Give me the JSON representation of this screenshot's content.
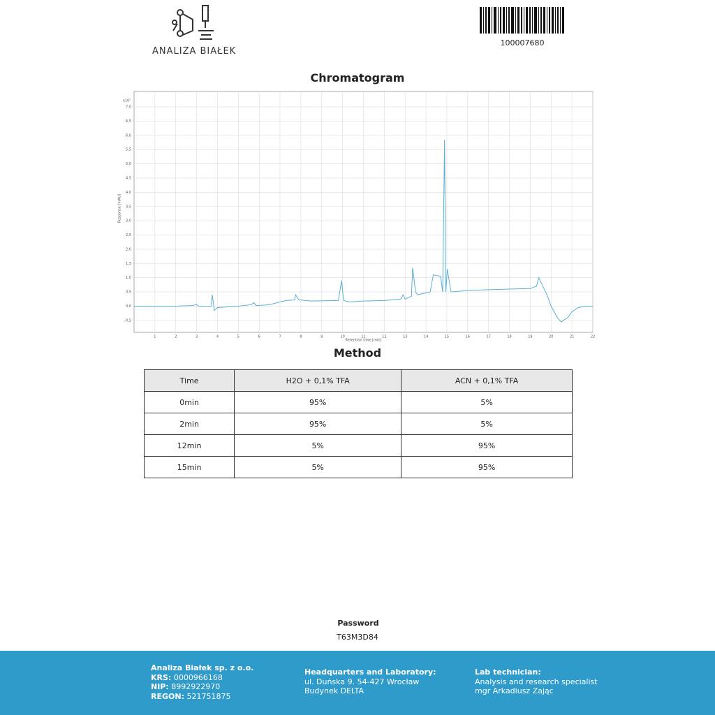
{
  "header": {
    "logo_text": "ANALIZA BIAŁEK",
    "barcode_number": "100007680"
  },
  "chart_data": {
    "type": "line",
    "title": "Chromatogram",
    "x_label": "Retention time [min]",
    "y_label": "Response [mAU]",
    "y_multiplier": "x10²",
    "x": [
      0,
      0.5,
      1,
      2,
      2.8,
      3,
      3.1,
      3.7,
      3.75,
      3.85,
      4,
      5,
      5.6,
      5.75,
      5.85,
      6.5,
      7,
      7.3,
      7.7,
      7.75,
      7.9,
      8.5,
      9.8,
      9.95,
      10.05,
      10.3,
      11,
      12,
      12.8,
      12.9,
      13,
      13.3,
      13.36,
      13.5,
      13.6,
      14.2,
      14.35,
      14.7,
      14.8,
      14.89,
      14.95,
      15.02,
      15.2,
      16,
      17,
      18,
      19,
      19.3,
      19.41,
      19.8,
      20,
      20.3,
      20.48,
      20.8,
      21,
      21.3,
      21.7,
      22
    ],
    "values": [
      0,
      0,
      -0.01,
      0,
      0.02,
      0.06,
      0,
      0,
      0.4,
      -0.15,
      -0.05,
      0,
      0.05,
      0.12,
      0.02,
      0.05,
      0.15,
      0.2,
      0.22,
      0.4,
      0.22,
      0.18,
      0.2,
      0.9,
      0.2,
      0.15,
      0.18,
      0.2,
      0.25,
      0.4,
      0.25,
      0.35,
      1.35,
      0.5,
      0.4,
      0.5,
      1.1,
      1.05,
      0.5,
      5.85,
      0.5,
      1.3,
      0.5,
      0.55,
      0.58,
      0.6,
      0.62,
      0.7,
      1.0,
      0.4,
      0,
      -0.4,
      -0.55,
      -0.4,
      -0.2,
      -0.05,
      0,
      0
    ],
    "color": "#5bb0d0",
    "xlim": [
      0,
      22
    ],
    "ylim": [
      -0.92,
      7.54
    ],
    "xticks": [
      1,
      2,
      3,
      4,
      5,
      6,
      7,
      8,
      9,
      10,
      11,
      12,
      13,
      14,
      15,
      16,
      17,
      18,
      19,
      20,
      21,
      22
    ],
    "yticks": [
      {
        "value": -0.5,
        "label": "-0,5"
      },
      {
        "value": 0,
        "label": "0,0"
      },
      {
        "value": 0.5,
        "label": "0,5"
      },
      {
        "value": 1,
        "label": "1,0"
      },
      {
        "value": 1.5,
        "label": "1,5"
      },
      {
        "value": 2,
        "label": "2,0"
      },
      {
        "value": 2.5,
        "label": "2,5"
      },
      {
        "value": 3,
        "label": "3,0"
      },
      {
        "value": 3.5,
        "label": "3,5"
      },
      {
        "value": 4,
        "label": "4,0"
      },
      {
        "value": 4.5,
        "label": "4,5"
      },
      {
        "value": 5,
        "label": "5,0"
      },
      {
        "value": 5.5,
        "label": "5,5"
      },
      {
        "value": 6,
        "label": "6,0"
      },
      {
        "value": 6.5,
        "label": "6,5"
      },
      {
        "value": 7,
        "label": "7,0"
      }
    ],
    "grid": true
  },
  "method": {
    "title": "Method",
    "table": {
      "header": [
        "Time",
        "H2O + 0,1% TFA",
        "ACN + 0,1% TFA"
      ],
      "rows": [
        [
          "0min",
          "95%",
          "5%"
        ],
        [
          "2min",
          "95%",
          "5%"
        ],
        [
          "12min",
          "5%",
          "95%"
        ],
        [
          "15min",
          "5%",
          "95%"
        ]
      ]
    }
  },
  "password": {
    "label": "Password",
    "value": "T63M3D84"
  },
  "footer": {
    "company": {
      "name": "Analiza Białek sp. z o.o.",
      "items": [
        {
          "label": "KRS:",
          "value": "0000966168"
        },
        {
          "label": "NIP:",
          "value": "8992922970"
        },
        {
          "label": "REGON:",
          "value": "521751875"
        }
      ]
    },
    "hq": {
      "title": "Headquarters and Laboratory:",
      "lines": [
        "ul. Duńska 9. 54-427 Wrocław",
        "Budynek DELTA"
      ]
    },
    "lab": {
      "title": "Lab technician:",
      "lines": [
        "Analysis and research specialist",
        "mgr Arkadiusz Zając"
      ]
    }
  }
}
